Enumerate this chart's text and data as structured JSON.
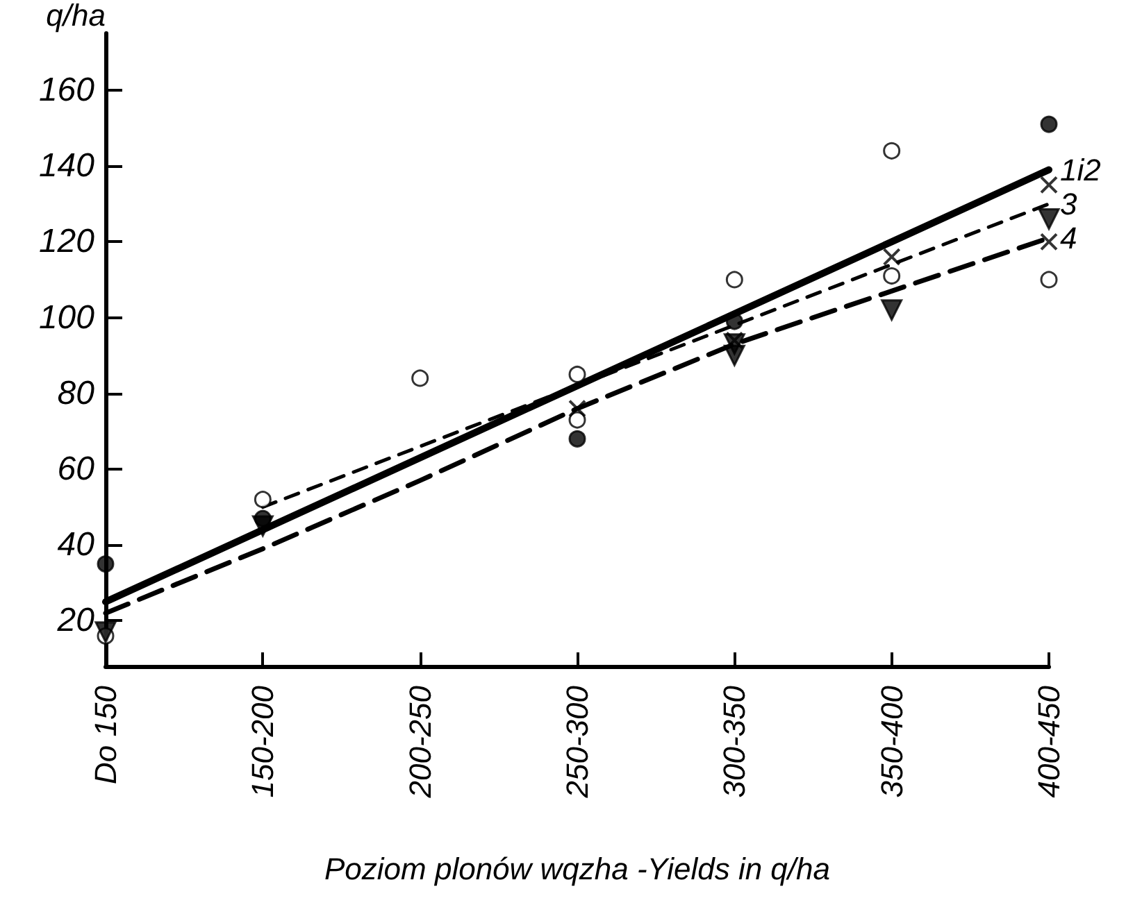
{
  "chart_data": {
    "type": "line",
    "xlabel": "Poziom plonów wqzha -Yields in q/ha",
    "ylabel": "q/ha",
    "categories": [
      "Do 150",
      "150-200",
      "200-250",
      "250-300",
      "300-350",
      "350-400",
      "400-450"
    ],
    "ylim": [
      8,
      175
    ],
    "yticks": [
      20,
      40,
      60,
      80,
      100,
      120,
      140,
      160
    ],
    "grid": false,
    "legend": false,
    "series": [
      {
        "name": "1i2",
        "color": "#000000",
        "line_style": "solid",
        "marker": "none",
        "values": [
          25,
          44,
          63,
          82,
          101,
          120,
          139
        ]
      },
      {
        "name": "3",
        "color": "#000000",
        "line_style": "dashed",
        "marker": "none",
        "values": [
          null,
          50,
          66,
          82,
          98,
          114,
          130
        ]
      },
      {
        "name": "4",
        "color": "#000000",
        "line_style": "dashed",
        "marker": "none",
        "values": [
          22,
          39,
          57,
          76,
          93,
          107,
          121
        ]
      },
      {
        "type": "scatter",
        "color": "#000000",
        "marker": "circle",
        "x": [
          "Do 150",
          "150-200",
          "250-300",
          "300-350",
          "400-450"
        ],
        "values": [
          35,
          47,
          68,
          99,
          151
        ]
      },
      {
        "type": "scatter",
        "color": "#ffffff",
        "marker": "circle",
        "x": [
          "Do 150",
          "150-200",
          "200-250",
          "250-300",
          "250-300",
          "300-350",
          "350-400",
          "350-400",
          "400-450"
        ],
        "values": [
          16,
          52,
          84,
          85,
          73,
          110,
          144,
          111,
          110
        ]
      },
      {
        "type": "scatter",
        "color": "#000000",
        "marker": "cross",
        "x": [
          "250-300",
          "300-350",
          "350-400",
          "400-450",
          "400-450"
        ],
        "values": [
          76,
          94,
          116,
          120,
          135
        ]
      },
      {
        "type": "scatter",
        "color": "#000000",
        "marker": "triangle",
        "x": [
          "Do 150",
          "150-200",
          "300-350",
          "300-350",
          "350-400",
          "400-450"
        ],
        "values": [
          17,
          45,
          93,
          90,
          102,
          126
        ]
      }
    ]
  }
}
